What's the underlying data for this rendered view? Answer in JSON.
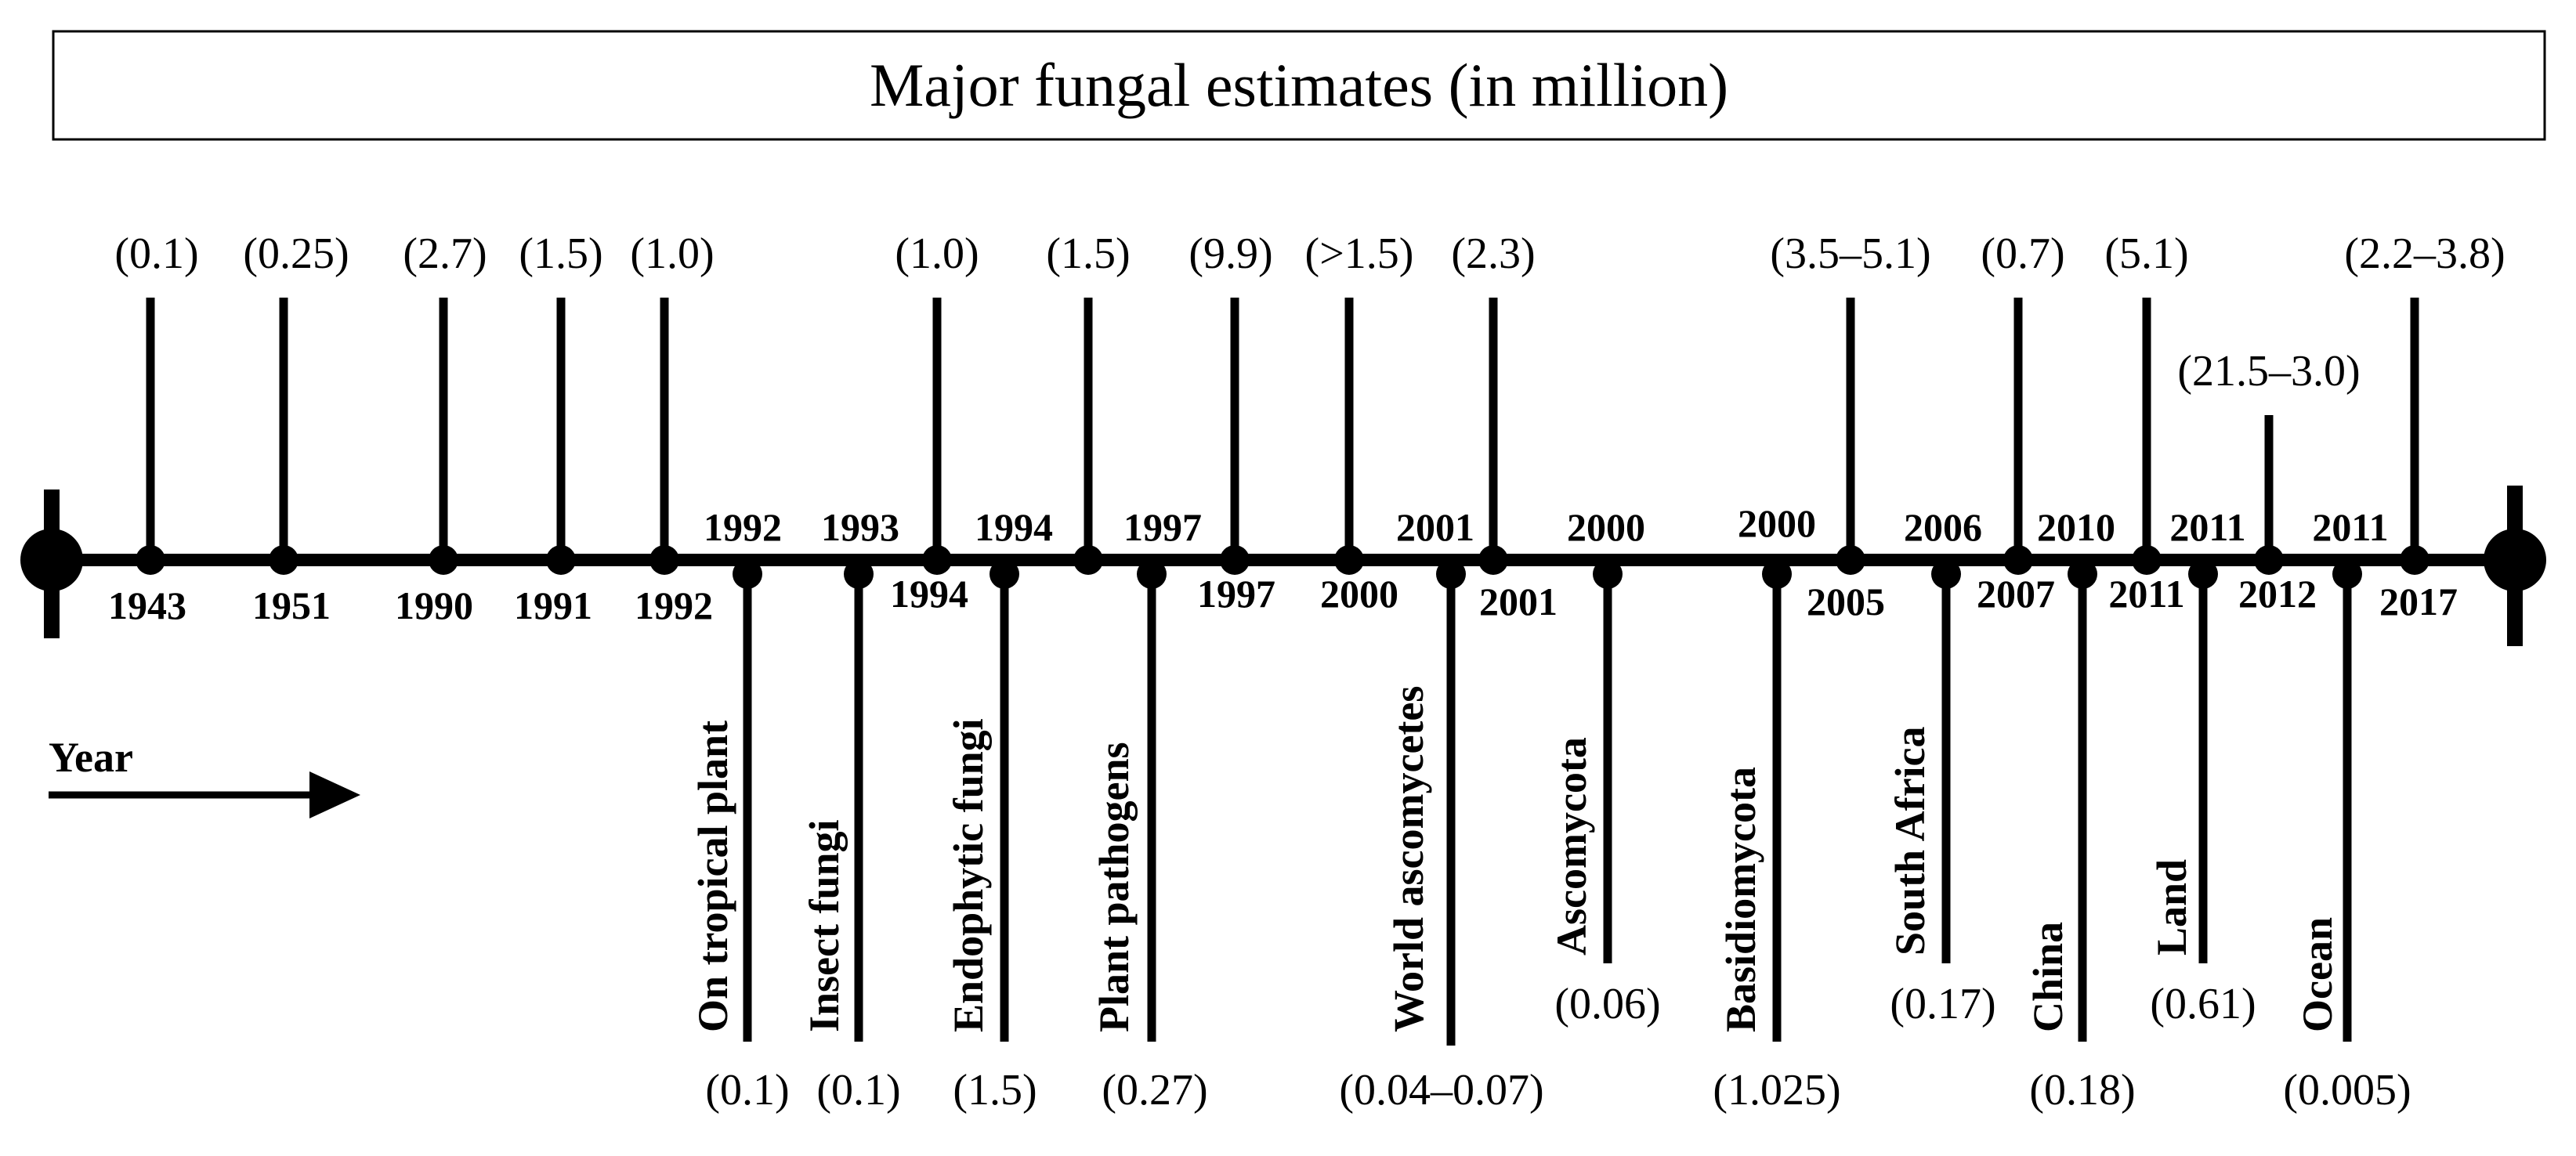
{
  "title": "Major fungal estimates (in million)",
  "legend": {
    "label": "Year",
    "icon": "right-arrow-icon"
  },
  "colors": {
    "line": "#000000",
    "background": "#ffffff"
  },
  "timeline": {
    "above": [
      {
        "year": "1943",
        "value": "(0.1)"
      },
      {
        "year": "1951",
        "value": "(0.25)"
      },
      {
        "year": "1990",
        "value": "(2.7)"
      },
      {
        "year": "1991",
        "value": "(1.5)"
      },
      {
        "year": "1992",
        "value": "(1.0)"
      },
      {
        "year": "1994",
        "value": "(1.0)"
      },
      {
        "year": "",
        "value": "(1.5)"
      },
      {
        "year": "1997",
        "value": "(9.9)"
      },
      {
        "year": "2000",
        "value": "(>1.5)"
      },
      {
        "year": "2001",
        "value": "(2.3)"
      },
      {
        "year": "2005",
        "value": "(3.5–5.1)"
      },
      {
        "year": "2007",
        "value": "(0.7)"
      },
      {
        "year": "2011",
        "value": "(5.1)"
      },
      {
        "year": "2012",
        "value": "(21.5–3.0)"
      },
      {
        "year": "2017",
        "value": "(2.2–3.8)"
      }
    ],
    "below": [
      {
        "year": "1992",
        "label": "On tropical plant",
        "value": "(0.1)"
      },
      {
        "year": "1993",
        "label": "Insect fungi",
        "value": "(0.1)"
      },
      {
        "year": "1994",
        "label": "Endophytic fungi",
        "value": "(1.5)"
      },
      {
        "year": "1997",
        "label": "Plant pathogens",
        "value": "(0.27)"
      },
      {
        "year": "2001",
        "label": "World ascomycetes",
        "value": "(0.04–0.07)"
      },
      {
        "year": "2000",
        "label": "Ascomycota",
        "value": "(0.06)"
      },
      {
        "year": "2000",
        "label": "Basidiomycota",
        "value": "(1.025)"
      },
      {
        "year": "2006",
        "label": "South Africa",
        "value": "(0.17)"
      },
      {
        "year": "2010",
        "label": "China",
        "value": "(0.18)"
      },
      {
        "year": "2011",
        "label": "Land",
        "value": "(0.61)"
      },
      {
        "year": "2011",
        "label": "Ocean",
        "value": "(0.005)"
      }
    ]
  }
}
